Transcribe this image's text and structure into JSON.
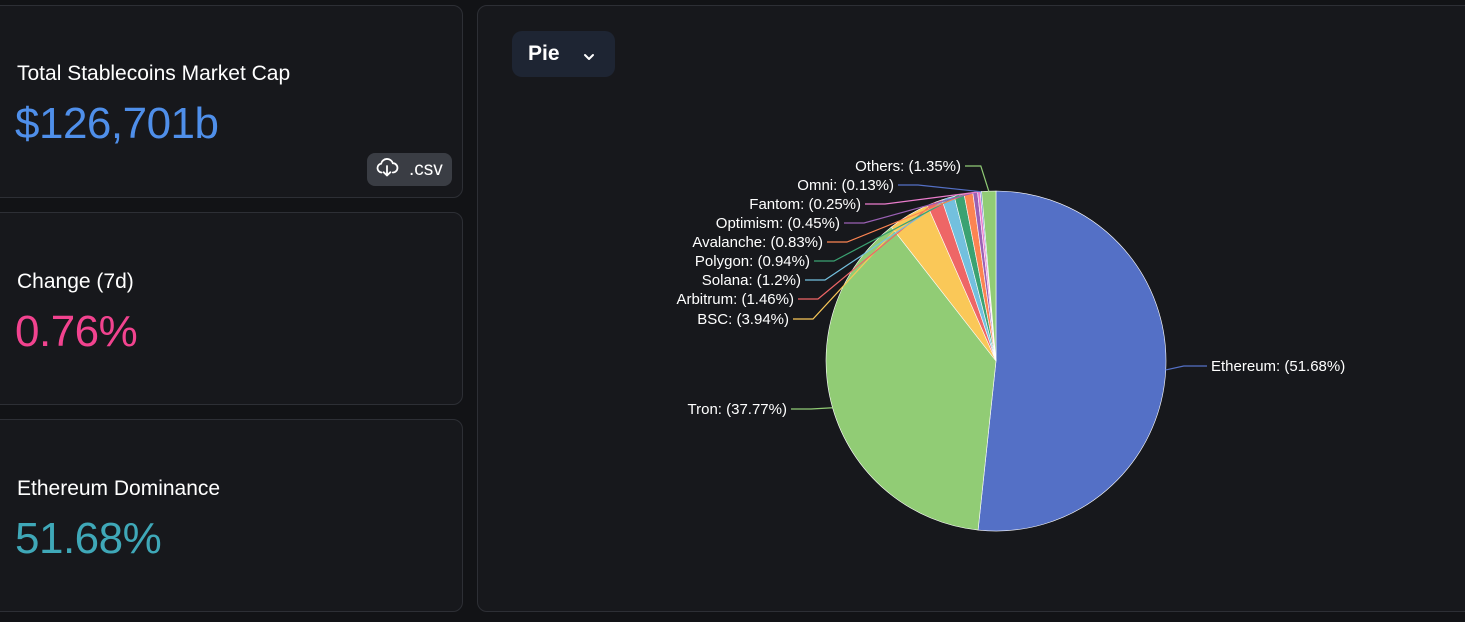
{
  "stats": {
    "market_cap": {
      "label": "Total Stablecoins Market Cap",
      "value": "$126,701b",
      "color": "#4f8fea",
      "csv_label": ".csv"
    },
    "change": {
      "label": "Change (7d)",
      "value": "0.76%",
      "color": "#f2438f"
    },
    "dominance": {
      "label": "Ethereum Dominance",
      "value": "51.68%",
      "color": "#3fa8b8"
    }
  },
  "chart_selector": {
    "value": "Pie"
  },
  "chart_data": {
    "type": "pie",
    "slices": [
      {
        "name": "Ethereum",
        "value": 51.68,
        "label": "Ethereum: (51.68%)",
        "color": "#5470c6"
      },
      {
        "name": "Tron",
        "value": 37.77,
        "label": "Tron: (37.77%)",
        "color": "#91cc75"
      },
      {
        "name": "BSC",
        "value": 3.94,
        "label": "BSC: (3.94%)",
        "color": "#fac858"
      },
      {
        "name": "Arbitrum",
        "value": 1.46,
        "label": "Arbitrum: (1.46%)",
        "color": "#ee6666"
      },
      {
        "name": "Solana",
        "value": 1.2,
        "label": "Solana: (1.2%)",
        "color": "#73c0de"
      },
      {
        "name": "Polygon",
        "value": 0.94,
        "label": "Polygon: (0.94%)",
        "color": "#3ba272"
      },
      {
        "name": "Avalanche",
        "value": 0.83,
        "label": "Avalanche: (0.83%)",
        "color": "#fc8452"
      },
      {
        "name": "Optimism",
        "value": 0.45,
        "label": "Optimism: (0.45%)",
        "color": "#9a60b4"
      },
      {
        "name": "Fantom",
        "value": 0.25,
        "label": "Fantom: (0.25%)",
        "color": "#ea7ccc"
      },
      {
        "name": "Omni",
        "value": 0.13,
        "label": "Omni: (0.13%)",
        "color": "#5470c6"
      },
      {
        "name": "Others",
        "value": 1.35,
        "label": "Others: (1.35%)",
        "color": "#91cc75"
      }
    ]
  }
}
